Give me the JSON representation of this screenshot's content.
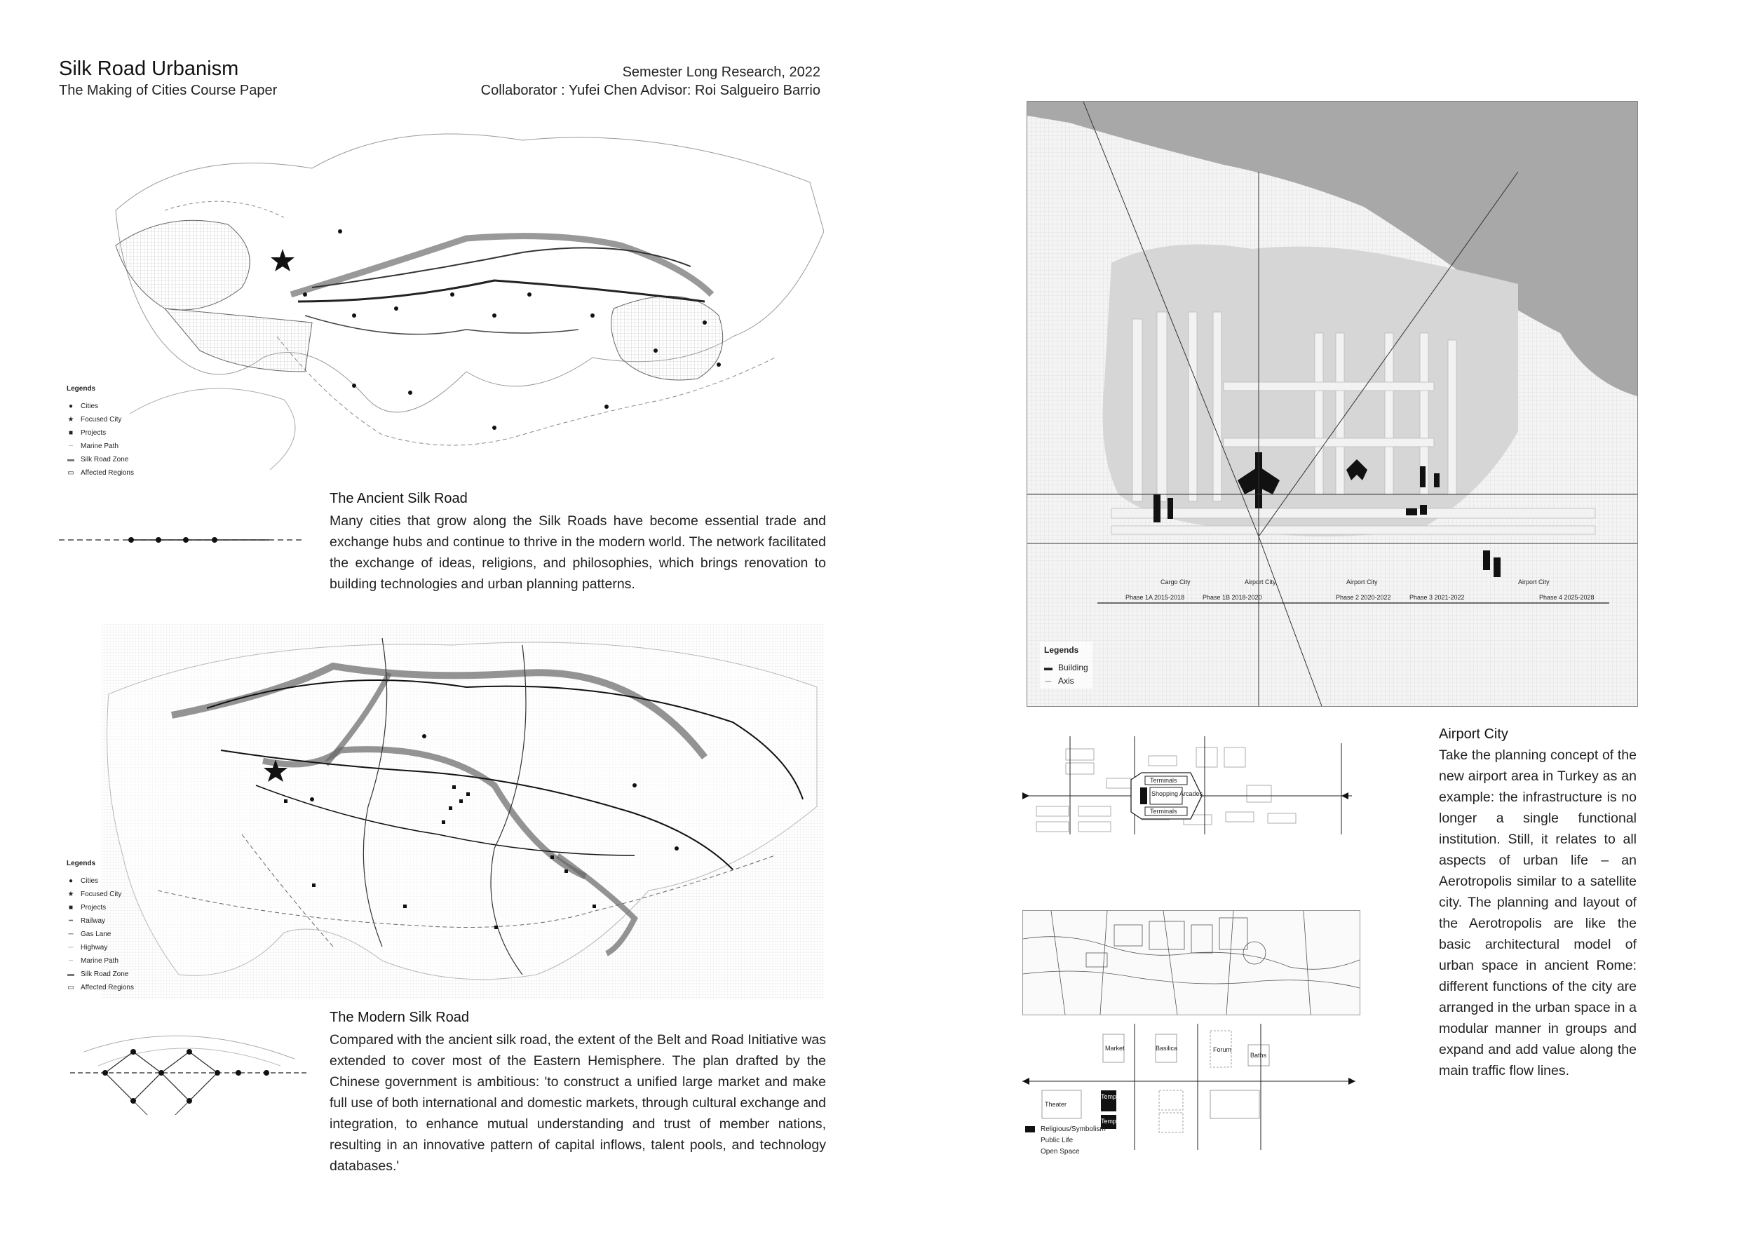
{
  "header": {
    "title": "Silk Road Urbanism",
    "subtitle": "The Making of Cities Course Paper",
    "meta_line1": "Semester Long Research, 2022",
    "meta_line2": "Collaborator : Yufei Chen  Advisor: Roi Salgueiro Barrio"
  },
  "ancient": {
    "heading": "The Ancient Silk Road",
    "text": "Many cities that grow along the Silk Roads have become essential trade and exchange hubs and continue to thrive in the modern world. The network facilitated the exchange of ideas, religions, and philosophies, which brings renovation to building technologies and urban planning patterns.",
    "legend": {
      "title": "Legends",
      "items": [
        "Cities",
        "Focused City",
        "Projects",
        "Marine Path",
        "Silk Road Zone",
        "Affected Regions"
      ]
    }
  },
  "modern": {
    "heading": "The Modern Silk Road",
    "text": "Compared with the ancient silk road, the extent of the Belt and Road Initiative was extended to cover most of the Eastern Hemisphere. The plan drafted by the Chinese government is ambitious: 'to construct a unified large market and make full use of both international and domestic markets, through cultural exchange and integration, to enhance mutual understanding and trust of member nations, resulting in an innovative pattern of capital inflows, talent pools, and technology databases.'",
    "legend": {
      "title": "Legends",
      "items": [
        "Cities",
        "Focused City",
        "Projects",
        "Railway",
        "Gas Lane",
        "Highway",
        "Marine Path",
        "Silk Road Zone",
        "Affected Regions"
      ]
    }
  },
  "airport": {
    "heading": "Airport City",
    "text": "Take the planning concept of the new airport area in Turkey as an example: the infrastructure is no longer a single functional institution. Still, it relates to all aspects of urban life – an Aerotropolis similar to a satellite city. The planning and layout of the Aerotropolis are like the basic architectural model of urban space in ancient Rome: different functions of the city are arranged in the urban space in a modular manner in groups and expand and add value along the main traffic flow lines.",
    "map_labels": {
      "zones": [
        "Cargo City",
        "Airport City",
        "Airport City",
        "Airport City"
      ],
      "phases": [
        "Phase 1A 2015-2018",
        "Phase 1B 2018-2020",
        "Phase 2 2020-2022",
        "Phase 3 2021-2022",
        "Phase 4 2025-2028"
      ]
    },
    "legend": {
      "title": "Legends",
      "items": [
        "Building",
        "Axis"
      ]
    },
    "diagram_labels": [
      "Terminals",
      "Shopping Arcades",
      "Terminals"
    ],
    "rome_legend": [
      "Religious/Symbolism",
      "Public Life",
      "Open Space"
    ],
    "rome_labels": [
      "Temple",
      "Temple",
      "Forum",
      "Basilica",
      "Theater",
      "Baths",
      "Market"
    ]
  }
}
